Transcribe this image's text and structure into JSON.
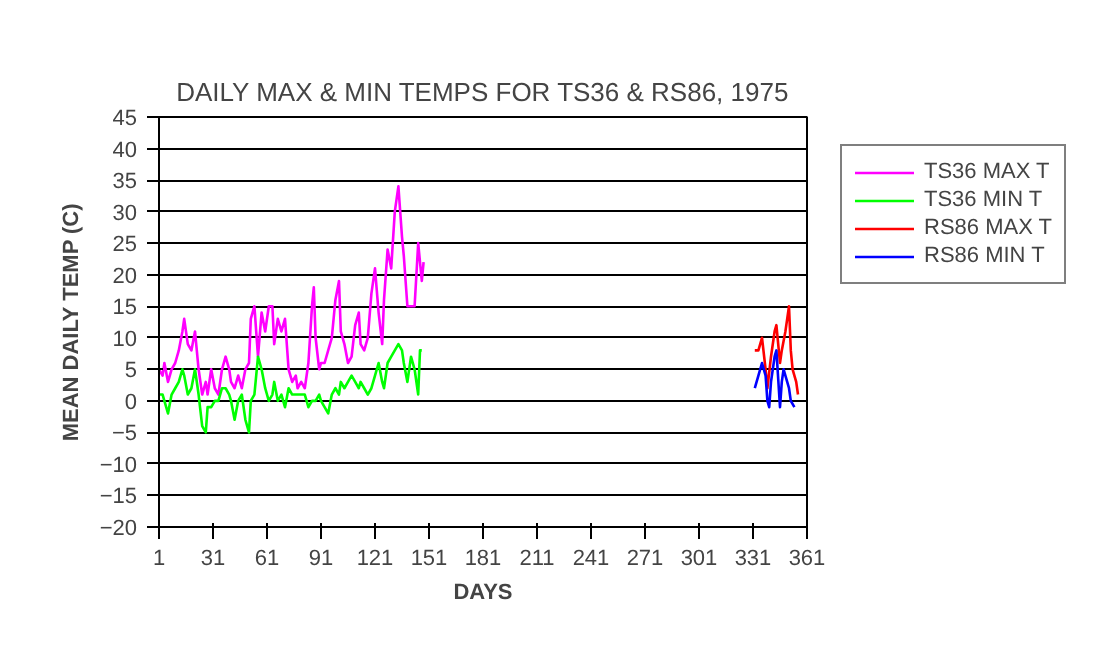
{
  "chart_data": {
    "type": "line",
    "title": "DAILY MAX & MIN TEMPS FOR TS36 & RS86, 1975",
    "xlabel": "DAYS",
    "ylabel": "MEAN DAILY TEMP (C)",
    "xlim": [
      1,
      361
    ],
    "xticks": [
      1,
      31,
      61,
      91,
      121,
      151,
      181,
      211,
      241,
      271,
      301,
      331,
      361
    ],
    "ylim": [
      -20,
      45
    ],
    "yticks": [
      -20,
      -15,
      -10,
      -5,
      0,
      5,
      10,
      15,
      20,
      25,
      30,
      35,
      40,
      45
    ],
    "grid": "y",
    "legend": "right",
    "marker": "none",
    "line_style": "solid",
    "series": [
      {
        "name": "TS36 MAX T",
        "color": "#ff00ff",
        "x": [
          1,
          3,
          4,
          6,
          8,
          10,
          12,
          14,
          15,
          17,
          19,
          21,
          23,
          25,
          27,
          28,
          30,
          32,
          34,
          36,
          38,
          40,
          41,
          43,
          45,
          47,
          49,
          51,
          52,
          54,
          56,
          58,
          60,
          62,
          64,
          65,
          67,
          69,
          71,
          73,
          75,
          77,
          78,
          80,
          82,
          84,
          86,
          87,
          88,
          90,
          91,
          93,
          95,
          97,
          99,
          101,
          102,
          104,
          106,
          108,
          110,
          112,
          113,
          115,
          117,
          119,
          121,
          123,
          125,
          126,
          128,
          130,
          132,
          134,
          136,
          137,
          139,
          141,
          143,
          145,
          147,
          148
        ],
        "values": [
          5,
          4,
          6,
          3,
          5,
          6,
          8,
          11,
          13,
          9,
          8,
          11,
          5,
          1,
          3,
          1,
          5,
          2,
          1,
          5,
          7,
          5,
          3,
          2,
          4,
          2,
          5,
          6,
          13,
          15,
          7,
          14,
          11,
          15,
          15,
          9,
          13,
          11,
          13,
          5,
          3,
          4,
          2,
          3,
          2,
          6,
          15,
          18,
          10,
          5,
          6,
          6,
          8,
          10,
          16,
          19,
          11,
          9,
          6,
          7,
          12,
          14,
          9,
          8,
          10,
          17,
          21,
          14,
          9,
          16,
          24,
          21,
          30,
          34,
          26,
          23,
          15,
          15,
          15,
          25,
          19,
          22
        ]
      },
      {
        "name": "TS36 MIN T",
        "color": "#00ff00",
        "x": [
          1,
          3,
          4,
          6,
          8,
          10,
          12,
          14,
          15,
          17,
          19,
          21,
          23,
          25,
          27,
          28,
          30,
          32,
          34,
          36,
          38,
          40,
          41,
          43,
          45,
          47,
          49,
          51,
          52,
          54,
          56,
          58,
          60,
          62,
          64,
          65,
          67,
          69,
          71,
          73,
          75,
          77,
          78,
          80,
          82,
          84,
          86,
          88,
          90,
          91,
          93,
          95,
          97,
          99,
          101,
          102,
          104,
          106,
          108,
          110,
          112,
          113,
          115,
          117,
          119,
          121,
          123,
          125,
          126,
          128,
          130,
          132,
          134,
          136,
          137,
          139,
          141,
          143,
          145,
          146,
          147
        ],
        "values": [
          1,
          1,
          0,
          -2,
          1,
          2,
          3,
          5,
          4,
          1,
          2,
          5,
          1,
          -4,
          -5,
          -1,
          -1,
          0,
          0,
          2,
          2,
          1,
          0,
          -3,
          0,
          1,
          -3,
          -5,
          0,
          1,
          7,
          5,
          2,
          0,
          1,
          3,
          0,
          1,
          -1,
          2,
          1,
          1,
          1,
          1,
          1,
          -1,
          0,
          0,
          1,
          0,
          -1,
          -2,
          1,
          2,
          1,
          3,
          2,
          3,
          4,
          3,
          2,
          3,
          2,
          1,
          2,
          4,
          6,
          3,
          2,
          6,
          7,
          8,
          9,
          8,
          6,
          3,
          7,
          5,
          1,
          8,
          8
        ]
      },
      {
        "name": "RS86 MAX T",
        "color": "#ff0000",
        "x": [
          332,
          334,
          336,
          338,
          339,
          341,
          343,
          344,
          346,
          347,
          349,
          350,
          351,
          352,
          353,
          355,
          356
        ],
        "values": [
          8,
          8,
          10,
          5,
          2,
          7,
          11,
          12,
          6,
          8,
          11,
          13,
          15,
          8,
          5,
          3,
          1
        ]
      },
      {
        "name": "RS86 MIN T",
        "color": "#0000ff",
        "x": [
          332,
          334,
          336,
          338,
          339,
          340,
          341,
          343,
          344,
          346,
          347,
          348,
          350,
          351,
          352,
          354
        ],
        "values": [
          2,
          4,
          6,
          4,
          0,
          -1,
          3,
          7,
          8,
          -1,
          3,
          5,
          3,
          2,
          0,
          -1
        ]
      }
    ]
  }
}
